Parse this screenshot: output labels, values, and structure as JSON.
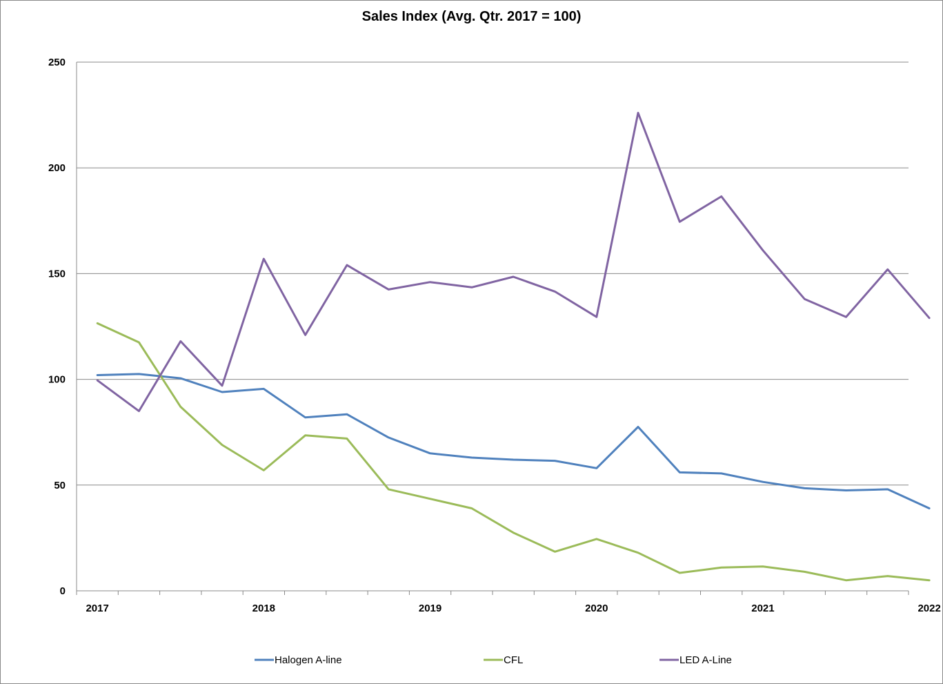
{
  "chart_data": {
    "type": "line",
    "title": "Sales Index (Avg. Qtr. 2017 = 100)",
    "xlabel": "",
    "ylabel": "",
    "ylim": [
      0,
      250
    ],
    "yticks": [
      0,
      50,
      100,
      150,
      200,
      250
    ],
    "x_tick_labels": [
      "2017",
      "2018",
      "2019",
      "2020",
      "2021",
      "2022"
    ],
    "quarters_per_year": 4,
    "grid": "horizontal",
    "legend": "bottom",
    "series": [
      {
        "name": "Halogen A-line",
        "color": "#4F81BD",
        "values": [
          102,
          102.5,
          100.5,
          94,
          95.5,
          82,
          83.5,
          72.5,
          65,
          63,
          62,
          61.5,
          58,
          77.5,
          56,
          55.5,
          51.5,
          48.5,
          47.5,
          48,
          39
        ]
      },
      {
        "name": "CFL",
        "color": "#9BBB59",
        "values": [
          126.5,
          117.5,
          87,
          69,
          57,
          73.5,
          72,
          48,
          43.5,
          39,
          27.5,
          18.5,
          24.5,
          18,
          8.5,
          11,
          11.5,
          9,
          5,
          7,
          5
        ]
      },
      {
        "name": "LED A-Line",
        "color": "#8064A2",
        "values": [
          99.5,
          85,
          118,
          97,
          157,
          121,
          154,
          142.5,
          146,
          143.5,
          148.5,
          141.5,
          129.5,
          226,
          174.5,
          186.5,
          161,
          138,
          129.5,
          152,
          129
        ]
      }
    ]
  }
}
